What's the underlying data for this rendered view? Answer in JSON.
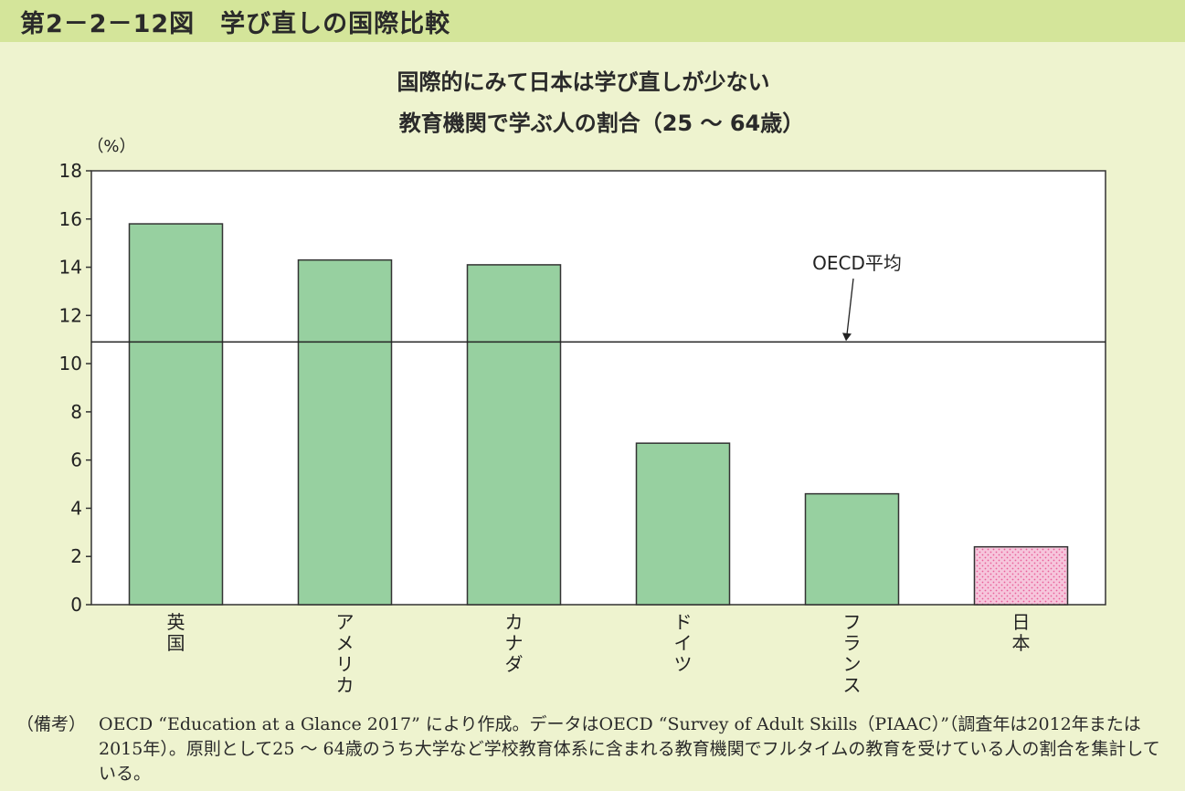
{
  "figure_title": "第2－2－12図　学び直しの国際比較",
  "chart_data": {
    "type": "bar",
    "title": "国際的にみて日本は学び直しが少ない",
    "subtitle": "教育機関で学ぶ人の割合（25 ～ 64歳）",
    "ylabel": "（%）",
    "ylim": [
      0,
      18
    ],
    "yticks": [
      0,
      2,
      4,
      6,
      8,
      10,
      12,
      14,
      16,
      18
    ],
    "categories": [
      "英国",
      "アメリカ",
      "カナダ",
      "ドイツ",
      "フランス",
      "日本"
    ],
    "values": [
      15.8,
      14.3,
      14.1,
      6.7,
      4.6,
      2.4
    ],
    "reference_line": {
      "label": "OECD平均",
      "value": 10.9
    },
    "colors": {
      "bar": "#97d0a0",
      "highlight": "#f6c6dc",
      "highlight_dots": "#e8609a",
      "outline": "#333333"
    },
    "highlight_category": "日本",
    "grid": false
  },
  "note": {
    "label": "（備考）",
    "text": "OECD “Education at a Glance 2017” により作成。データはOECD “Survey of Adult Skills（PIAAC）”（調査年は2012年または2015年）。原則として25 ～ 64歳のうち大学など学校教育体系に含まれる教育機関でフルタイムの教育を受けている人の割合を集計している。"
  }
}
